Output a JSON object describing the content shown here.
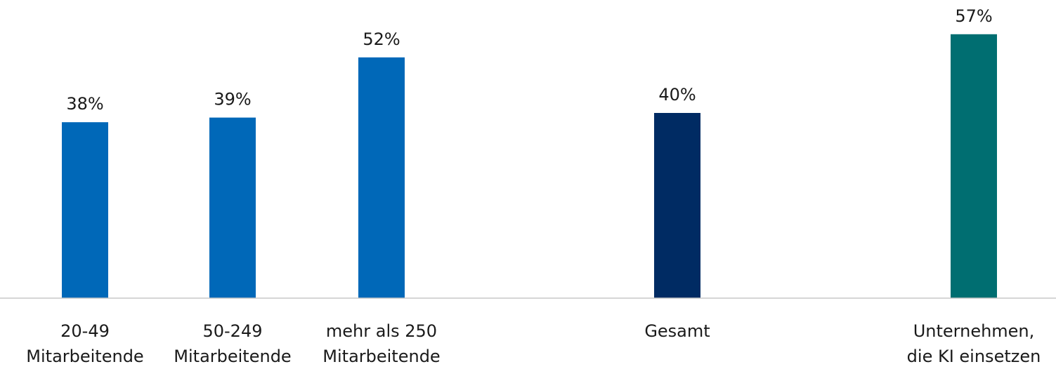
{
  "chart_data": {
    "type": "bar",
    "categories": [
      [
        "20-49",
        "Mitarbeitende"
      ],
      [
        "50-249",
        "Mitarbeitende"
      ],
      [
        "mehr als 250",
        "Mitarbeitende"
      ],
      [
        "Gesamt"
      ],
      [
        "Unternehmen,",
        "die KI einsetzen"
      ]
    ],
    "values": [
      38,
      39,
      52,
      40,
      57
    ],
    "value_labels": [
      "38%",
      "39%",
      "52%",
      "40%",
      "57%"
    ],
    "colors": [
      "#0068b8",
      "#0068b8",
      "#0068b8",
      "#002b63",
      "#006e71"
    ],
    "unit": "%",
    "ylim": [
      0,
      60
    ],
    "grid": false,
    "legend": "none",
    "title": "",
    "xlabel": "",
    "ylabel": ""
  }
}
